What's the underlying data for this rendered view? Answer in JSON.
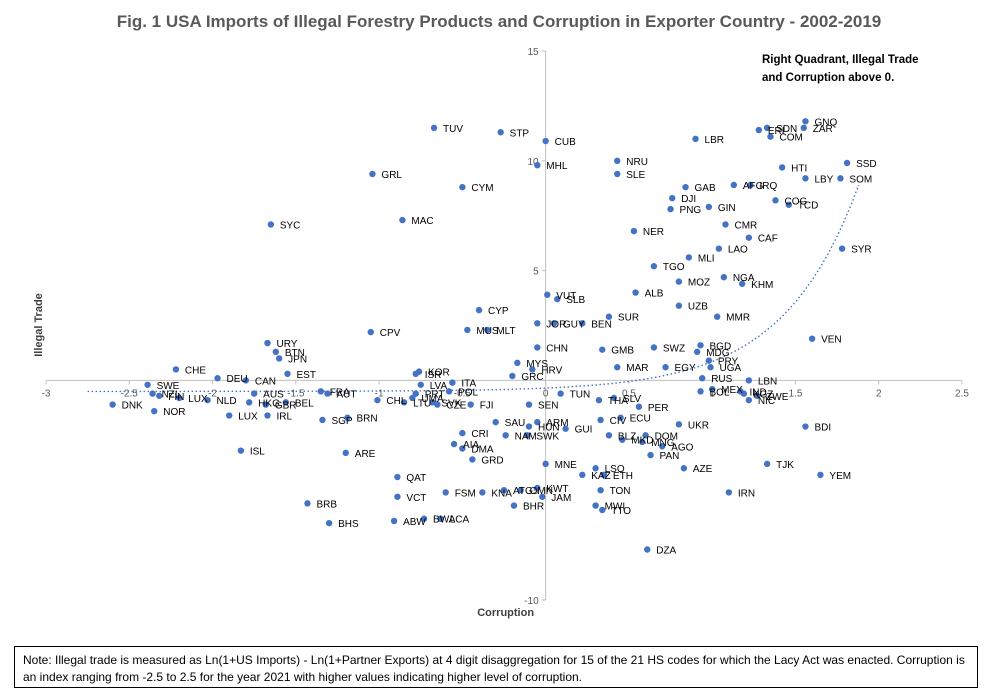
{
  "chart_data": {
    "type": "scatter",
    "title": "Fig. 1 USA Imports of Illegal Forestry Products and Corruption in Exporter Country - 2002-2019",
    "xlabel": "Corruption",
    "ylabel": "Illegal Trade",
    "xlim": [
      -3,
      2.5
    ],
    "ylim": [
      -10,
      15
    ],
    "x_ticks": [
      "-3",
      "-2.5",
      "-2",
      "-1.5",
      "-1",
      "-0.5",
      "0",
      "0.5",
      "1",
      "1.5",
      "2",
      "2.5"
    ],
    "y_ticks": [
      "-10",
      "-5",
      "0",
      "5",
      "10",
      "15"
    ],
    "annotation": [
      "Right Quadrant, Illegal Trade",
      "and Corruption above 0."
    ],
    "marker_color": "#4472C4",
    "trendline": {
      "type": "exponential",
      "color": "#4472C4",
      "style": "dotted"
    },
    "points": [
      {
        "label": "GNQ",
        "x": 1.56,
        "y": 11.8
      },
      {
        "label": "ZAR",
        "x": 1.55,
        "y": 11.5
      },
      {
        "label": "SDN",
        "x": 1.33,
        "y": 11.5
      },
      {
        "label": "ERI",
        "x": 1.28,
        "y": 11.4
      },
      {
        "label": "COM",
        "x": 1.35,
        "y": 11.1
      },
      {
        "label": "LBR",
        "x": 0.9,
        "y": 11.0
      },
      {
        "label": "SSD",
        "x": 1.81,
        "y": 9.9
      },
      {
        "label": "HTI",
        "x": 1.42,
        "y": 9.7
      },
      {
        "label": "LBY",
        "x": 1.56,
        "y": 9.2
      },
      {
        "label": "SOM",
        "x": 1.77,
        "y": 9.2
      },
      {
        "label": "AFG",
        "x": 1.13,
        "y": 8.9
      },
      {
        "label": "IRQ",
        "x": 1.23,
        "y": 8.9
      },
      {
        "label": "GAB",
        "x": 0.84,
        "y": 8.8
      },
      {
        "label": "DJI",
        "x": 0.76,
        "y": 8.3
      },
      {
        "label": "COG",
        "x": 1.38,
        "y": 8.2
      },
      {
        "label": "TCD",
        "x": 1.46,
        "y": 8.0
      },
      {
        "label": "GIN",
        "x": 0.98,
        "y": 7.9
      },
      {
        "label": "PNG",
        "x": 0.75,
        "y": 7.8
      },
      {
        "label": "CMR",
        "x": 1.08,
        "y": 7.1
      },
      {
        "label": "NER",
        "x": 0.53,
        "y": 6.8
      },
      {
        "label": "CAF",
        "x": 1.22,
        "y": 6.5
      },
      {
        "label": "LAO",
        "x": 1.04,
        "y": 6.0
      },
      {
        "label": "MLI",
        "x": 0.86,
        "y": 5.6
      },
      {
        "label": "SYR",
        "x": 1.78,
        "y": 6.0
      },
      {
        "label": "TGO",
        "x": 0.65,
        "y": 5.2
      },
      {
        "label": "NGA",
        "x": 1.07,
        "y": 4.7
      },
      {
        "label": "MOZ",
        "x": 0.8,
        "y": 4.5
      },
      {
        "label": "KHM",
        "x": 1.18,
        "y": 4.4
      },
      {
        "label": "ALB",
        "x": 0.54,
        "y": 4.0
      },
      {
        "label": "UZB",
        "x": 0.8,
        "y": 3.4
      },
      {
        "label": "MMR",
        "x": 1.03,
        "y": 2.9
      },
      {
        "label": "VEN",
        "x": 1.6,
        "y": 1.9
      },
      {
        "label": "BGD",
        "x": 0.93,
        "y": 1.6
      },
      {
        "label": "MDG",
        "x": 0.91,
        "y": 1.3
      },
      {
        "label": "PRY",
        "x": 0.98,
        "y": 0.9
      },
      {
        "label": "UGA",
        "x": 0.99,
        "y": 0.6
      },
      {
        "label": "SWZ",
        "x": 0.65,
        "y": 1.5
      },
      {
        "label": "GMB",
        "x": 0.34,
        "y": 1.4
      },
      {
        "label": "EGY",
        "x": 0.72,
        "y": 0.6
      },
      {
        "label": "RUS",
        "x": 0.94,
        "y": 0.1
      },
      {
        "label": "LBN",
        "x": 1.22,
        "y": 0.0
      },
      {
        "label": "MEX",
        "x": 1.0,
        "y": -0.4
      },
      {
        "label": "BOL",
        "x": 0.93,
        "y": -0.5
      },
      {
        "label": "IND",
        "x": 1.17,
        "y": -0.5
      },
      {
        "label": "KGZ",
        "x": 1.19,
        "y": -0.6
      },
      {
        "label": "NIC",
        "x": 1.22,
        "y": -0.9
      },
      {
        "label": "ZWE",
        "x": 1.27,
        "y": -0.7
      },
      {
        "label": "BDI",
        "x": 1.56,
        "y": -2.1
      },
      {
        "label": "UKR",
        "x": 0.8,
        "y": -2.0
      },
      {
        "label": "DOM",
        "x": 0.6,
        "y": -2.5
      },
      {
        "label": "AGO",
        "x": 0.7,
        "y": -3.0
      },
      {
        "label": "MNG",
        "x": 0.58,
        "y": -2.8
      },
      {
        "label": "PAN",
        "x": 0.63,
        "y": -3.4
      },
      {
        "label": "MKD",
        "x": 0.46,
        "y": -2.7
      },
      {
        "label": "BLZ",
        "x": 0.38,
        "y": -2.5
      },
      {
        "label": "TJK",
        "x": 1.33,
        "y": -3.8
      },
      {
        "label": "YEM",
        "x": 1.65,
        "y": -4.3
      },
      {
        "label": "AZE",
        "x": 0.83,
        "y": -4.0
      },
      {
        "label": "IRN",
        "x": 1.1,
        "y": -5.1
      },
      {
        "label": "DZA",
        "x": 0.61,
        "y": -7.7
      },
      {
        "label": "CUB",
        "x": 0.0,
        "y": 10.9
      },
      {
        "label": "STP",
        "x": -0.27,
        "y": 11.3
      },
      {
        "label": "TUV",
        "x": -0.67,
        "y": 11.5
      },
      {
        "label": "MHL",
        "x": -0.05,
        "y": 9.8
      },
      {
        "label": "NRU",
        "x": 0.43,
        "y": 10.0
      },
      {
        "label": "SLE",
        "x": 0.43,
        "y": 9.4
      },
      {
        "label": "GRL",
        "x": -1.04,
        "y": 9.4
      },
      {
        "label": "CYM",
        "x": -0.5,
        "y": 8.8
      },
      {
        "label": "MAC",
        "x": -0.86,
        "y": 7.3
      },
      {
        "label": "SYC",
        "x": -1.65,
        "y": 7.1
      },
      {
        "label": "VUT",
        "x": 0.01,
        "y": 3.9
      },
      {
        "label": "SLB",
        "x": 0.07,
        "y": 3.7
      },
      {
        "label": "CYP",
        "x": -0.4,
        "y": 3.2
      },
      {
        "label": "SUR",
        "x": 0.38,
        "y": 2.9
      },
      {
        "label": "JOR",
        "x": -0.05,
        "y": 2.6
      },
      {
        "label": "BEN",
        "x": 0.22,
        "y": 2.6
      },
      {
        "label": "GUY",
        "x": 0.05,
        "y": 2.6
      },
      {
        "label": "MUS",
        "x": -0.47,
        "y": 2.3
      },
      {
        "label": "MLT",
        "x": -0.35,
        "y": 2.3
      },
      {
        "label": "CPV",
        "x": -1.05,
        "y": 2.2
      },
      {
        "label": "CHN",
        "x": -0.05,
        "y": 1.5
      },
      {
        "label": "MYS",
        "x": -0.17,
        "y": 0.8
      },
      {
        "label": "HRV",
        "x": -0.08,
        "y": 0.5
      },
      {
        "label": "GRC",
        "x": -0.2,
        "y": 0.2
      },
      {
        "label": "MAR",
        "x": 0.43,
        "y": 0.6
      },
      {
        "label": "KOR",
        "x": -0.76,
        "y": 0.4
      },
      {
        "label": "ISR",
        "x": -0.78,
        "y": 0.3
      },
      {
        "label": "LVA",
        "x": -0.75,
        "y": -0.2
      },
      {
        "label": "ITA",
        "x": -0.56,
        "y": -0.1
      },
      {
        "label": "POL",
        "x": -0.58,
        "y": -0.5
      },
      {
        "label": "PRT",
        "x": -0.78,
        "y": -0.6
      },
      {
        "label": "CHL",
        "x": -1.01,
        "y": -0.9
      },
      {
        "label": "SVK",
        "x": -0.68,
        "y": -1.0
      },
      {
        "label": "CZE",
        "x": -0.65,
        "y": -1.1
      },
      {
        "label": "FJI",
        "x": -0.45,
        "y": -1.1
      },
      {
        "label": "UMA",
        "x": -0.8,
        "y": -0.8
      },
      {
        "label": "LTU",
        "x": -0.85,
        "y": -1.0
      },
      {
        "label": "SEN",
        "x": -0.1,
        "y": -1.1
      },
      {
        "label": "THA",
        "x": 0.32,
        "y": -0.9
      },
      {
        "label": "TUN",
        "x": 0.09,
        "y": -0.6
      },
      {
        "label": "CIV",
        "x": 0.33,
        "y": -1.8
      },
      {
        "label": "ECU",
        "x": 0.45,
        "y": -1.7
      },
      {
        "label": "SLV",
        "x": 0.41,
        "y": -0.8
      },
      {
        "label": "PER",
        "x": 0.56,
        "y": -1.2
      },
      {
        "label": "SAU",
        "x": -0.3,
        "y": -1.9
      },
      {
        "label": "ARM",
        "x": -0.05,
        "y": -1.9
      },
      {
        "label": "GUI",
        "x": 0.12,
        "y": -2.2
      },
      {
        "label": "CRI",
        "x": -0.5,
        "y": -2.4
      },
      {
        "label": "NAM",
        "x": -0.24,
        "y": -2.5
      },
      {
        "label": "SWK",
        "x": -0.11,
        "y": -2.5
      },
      {
        "label": "HUN",
        "x": -0.1,
        "y": -2.1
      },
      {
        "label": "AIA",
        "x": -0.55,
        "y": -2.9
      },
      {
        "label": "DMA",
        "x": -0.5,
        "y": -3.1
      },
      {
        "label": "GRD",
        "x": -0.44,
        "y": -3.6
      },
      {
        "label": "MNE",
        "x": 0.0,
        "y": -3.8
      },
      {
        "label": "LSO",
        "x": 0.3,
        "y": -4.0
      },
      {
        "label": "KAZ",
        "x": 0.22,
        "y": -4.3
      },
      {
        "label": "ETH",
        "x": 0.35,
        "y": -4.3
      },
      {
        "label": "QAT",
        "x": -0.89,
        "y": -4.4
      },
      {
        "label": "TON",
        "x": 0.33,
        "y": -5.0
      },
      {
        "label": "KWT",
        "x": -0.05,
        "y": -4.9
      },
      {
        "label": "OMN",
        "x": -0.15,
        "y": -5.0
      },
      {
        "label": "JAM",
        "x": -0.02,
        "y": -5.3
      },
      {
        "label": "ATG",
        "x": -0.25,
        "y": -5.0
      },
      {
        "label": "KNA",
        "x": -0.38,
        "y": -5.1
      },
      {
        "label": "FSM",
        "x": -0.6,
        "y": -5.1
      },
      {
        "label": "VCT",
        "x": -0.89,
        "y": -5.3
      },
      {
        "label": "BHR",
        "x": -0.19,
        "y": -5.7
      },
      {
        "label": "MWI",
        "x": 0.3,
        "y": -5.7
      },
      {
        "label": "TTO",
        "x": 0.34,
        "y": -5.9
      },
      {
        "label": "BRB",
        "x": -1.43,
        "y": -5.6
      },
      {
        "label": "ABW",
        "x": -0.91,
        "y": -6.4
      },
      {
        "label": "BWA",
        "x": -0.73,
        "y": -6.3
      },
      {
        "label": "LCA",
        "x": -0.63,
        "y": -6.3
      },
      {
        "label": "BHS",
        "x": -1.3,
        "y": -6.5
      },
      {
        "label": "URY",
        "x": -1.67,
        "y": 1.7
      },
      {
        "label": "BTN",
        "x": -1.62,
        "y": 1.3
      },
      {
        "label": "JPN",
        "x": -1.6,
        "y": 1.0
      },
      {
        "label": "EST",
        "x": -1.55,
        "y": 0.3
      },
      {
        "label": "CHE",
        "x": -2.22,
        "y": 0.5
      },
      {
        "label": "DEU",
        "x": -1.97,
        "y": 0.1
      },
      {
        "label": "CAN",
        "x": -1.8,
        "y": 0.0
      },
      {
        "label": "SWE",
        "x": -2.39,
        "y": -0.2
      },
      {
        "label": "FRA",
        "x": -1.35,
        "y": -0.5
      },
      {
        "label": "AUT",
        "x": -1.31,
        "y": -0.6
      },
      {
        "label": "AUS",
        "x": -1.75,
        "y": -0.6
      },
      {
        "label": "NZL",
        "x": -2.36,
        "y": -0.6
      },
      {
        "label": "FIN",
        "x": -2.32,
        "y": -0.7
      },
      {
        "label": "LUX",
        "x": -2.2,
        "y": -0.8
      },
      {
        "label": "NLD",
        "x": -2.03,
        "y": -0.9
      },
      {
        "label": "DNK",
        "x": -2.6,
        "y": -1.1
      },
      {
        "label": "GBR",
        "x": -1.68,
        "y": -1.1
      },
      {
        "label": "HKG",
        "x": -1.78,
        "y": -1.0
      },
      {
        "label": "BEL",
        "x": -1.56,
        "y": -1.0
      },
      {
        "label": "NOR",
        "x": -2.35,
        "y": -1.4
      },
      {
        "label": "LUX",
        "x": -1.9,
        "y": -1.6
      },
      {
        "label": "IRL",
        "x": -1.67,
        "y": -1.6
      },
      {
        "label": "BRN",
        "x": -1.19,
        "y": -1.7
      },
      {
        "label": "SGP",
        "x": -1.34,
        "y": -1.8
      },
      {
        "label": "ISL",
        "x": -1.83,
        "y": -3.2
      },
      {
        "label": "ARE",
        "x": -1.2,
        "y": -3.3
      }
    ]
  },
  "note": "Note: Illegal trade is measured as Ln(1+US Imports) - Ln(1+Partner Exports) at 4 digit disaggregation for 15 of the 21 HS codes for which the Lacy Act was enacted. Corruption is an index ranging from -2.5 to 2.5 for the year 2021 with higher values indicating higher level of corruption."
}
